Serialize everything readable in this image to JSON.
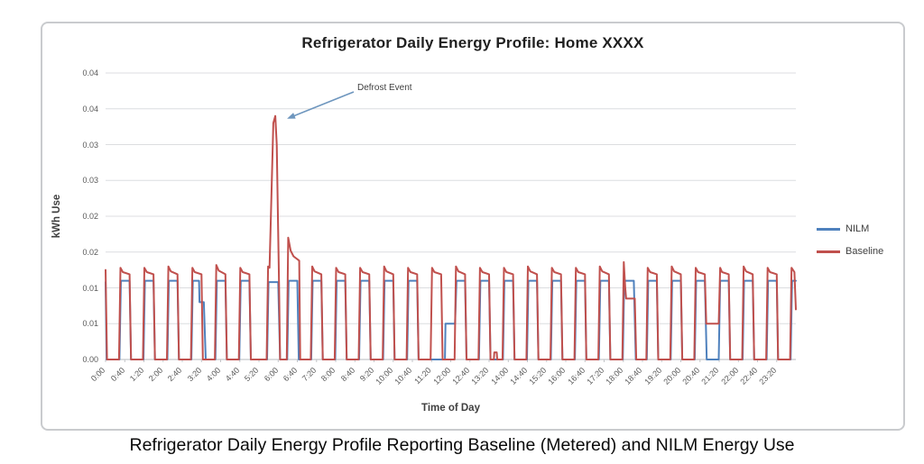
{
  "page": {
    "caption": "Refrigerator Daily Energy Profile Reporting Baseline (Metered) and NILM Energy Use"
  },
  "chart_data": {
    "type": "line",
    "title": "Refrigerator Daily Energy Profile: Home XXXX",
    "xlabel": "Time of Day",
    "ylabel": "kWh Use",
    "x_unit": "minutes_of_day",
    "xlim": [
      0,
      1440
    ],
    "ylim": [
      0,
      0.04
    ],
    "grid": "horizontal",
    "legend_position": "right",
    "annotation": {
      "text": "Defrost Event",
      "target_minutes": 354,
      "target_value": 0.034,
      "arrow_color": "#6e96be"
    },
    "y_ticks": [
      {
        "v": 0.04,
        "label": "0.04"
      },
      {
        "v": 0.035,
        "label": "0.04"
      },
      {
        "v": 0.03,
        "label": "0.03"
      },
      {
        "v": 0.025,
        "label": "0.03"
      },
      {
        "v": 0.02,
        "label": "0.02"
      },
      {
        "v": 0.015,
        "label": "0.02"
      },
      {
        "v": 0.01,
        "label": "0.01"
      },
      {
        "v": 0.005,
        "label": "0.01"
      },
      {
        "v": 0.0,
        "label": "0.00"
      }
    ],
    "x_ticks": [
      {
        "t": 0,
        "label": "0:00"
      },
      {
        "t": 40,
        "label": "0:40"
      },
      {
        "t": 80,
        "label": "1:20"
      },
      {
        "t": 120,
        "label": "2:00"
      },
      {
        "t": 160,
        "label": "2:40"
      },
      {
        "t": 200,
        "label": "3:20"
      },
      {
        "t": 240,
        "label": "4:00"
      },
      {
        "t": 280,
        "label": "4:40"
      },
      {
        "t": 320,
        "label": "5:20"
      },
      {
        "t": 360,
        "label": "6:00"
      },
      {
        "t": 400,
        "label": "6:40"
      },
      {
        "t": 440,
        "label": "7:20"
      },
      {
        "t": 480,
        "label": "8:00"
      },
      {
        "t": 520,
        "label": "8:40"
      },
      {
        "t": 560,
        "label": "9:20"
      },
      {
        "t": 600,
        "label": "10:00"
      },
      {
        "t": 640,
        "label": "10:40"
      },
      {
        "t": 680,
        "label": "11:20"
      },
      {
        "t": 720,
        "label": "12:00"
      },
      {
        "t": 760,
        "label": "12:40"
      },
      {
        "t": 800,
        "label": "13:20"
      },
      {
        "t": 840,
        "label": "14:00"
      },
      {
        "t": 880,
        "label": "14:40"
      },
      {
        "t": 920,
        "label": "15:20"
      },
      {
        "t": 960,
        "label": "16:00"
      },
      {
        "t": 1000,
        "label": "16:40"
      },
      {
        "t": 1040,
        "label": "17:20"
      },
      {
        "t": 1080,
        "label": "18:00"
      },
      {
        "t": 1120,
        "label": "18:40"
      },
      {
        "t": 1160,
        "label": "19:20"
      },
      {
        "t": 1200,
        "label": "20:00"
      },
      {
        "t": 1240,
        "label": "20:40"
      },
      {
        "t": 1280,
        "label": "21:20"
      },
      {
        "t": 1320,
        "label": "22:00"
      },
      {
        "t": 1360,
        "label": "22:40"
      },
      {
        "t": 1400,
        "label": "23:20"
      }
    ],
    "series": [
      {
        "name": "NILM",
        "color": "#4f81bd",
        "points": [
          [
            0,
            0.0108
          ],
          [
            2,
            0
          ],
          [
            29,
            0
          ],
          [
            32,
            0.011
          ],
          [
            50,
            0.011
          ],
          [
            53,
            0
          ],
          [
            79,
            0
          ],
          [
            82,
            0.011
          ],
          [
            100,
            0.011
          ],
          [
            103,
            0
          ],
          [
            129,
            0
          ],
          [
            132,
            0.011
          ],
          [
            150,
            0.011
          ],
          [
            153,
            0
          ],
          [
            179,
            0
          ],
          [
            182,
            0.011
          ],
          [
            195,
            0.011
          ],
          [
            196,
            0.008
          ],
          [
            205,
            0.008
          ],
          [
            209,
            0
          ],
          [
            229,
            0
          ],
          [
            232,
            0.011
          ],
          [
            250,
            0.011
          ],
          [
            253,
            0
          ],
          [
            279,
            0
          ],
          [
            282,
            0.011
          ],
          [
            300,
            0.011
          ],
          [
            303,
            0
          ],
          [
            337,
            0
          ],
          [
            340,
            0.0108
          ],
          [
            360,
            0.0108
          ],
          [
            364,
            0
          ],
          [
            379,
            0
          ],
          [
            382,
            0.011
          ],
          [
            400,
            0.011
          ],
          [
            403,
            0
          ],
          [
            429,
            0
          ],
          [
            432,
            0.011
          ],
          [
            450,
            0.011
          ],
          [
            453,
            0
          ],
          [
            479,
            0
          ],
          [
            482,
            0.011
          ],
          [
            500,
            0.011
          ],
          [
            503,
            0
          ],
          [
            529,
            0
          ],
          [
            532,
            0.011
          ],
          [
            550,
            0.011
          ],
          [
            553,
            0
          ],
          [
            579,
            0
          ],
          [
            582,
            0.011
          ],
          [
            600,
            0.011
          ],
          [
            603,
            0
          ],
          [
            629,
            0
          ],
          [
            632,
            0.011
          ],
          [
            650,
            0.011
          ],
          [
            653,
            0
          ],
          [
            708,
            0
          ],
          [
            709,
            0.005
          ],
          [
            729,
            0.005
          ],
          [
            732,
            0.011
          ],
          [
            750,
            0.011
          ],
          [
            753,
            0
          ],
          [
            779,
            0
          ],
          [
            782,
            0.011
          ],
          [
            800,
            0.011
          ],
          [
            803,
            0
          ],
          [
            829,
            0
          ],
          [
            832,
            0.011
          ],
          [
            850,
            0.011
          ],
          [
            853,
            0
          ],
          [
            879,
            0
          ],
          [
            882,
            0.011
          ],
          [
            900,
            0.011
          ],
          [
            903,
            0
          ],
          [
            929,
            0
          ],
          [
            932,
            0.011
          ],
          [
            950,
            0.011
          ],
          [
            953,
            0
          ],
          [
            979,
            0
          ],
          [
            982,
            0.011
          ],
          [
            1000,
            0.011
          ],
          [
            1003,
            0
          ],
          [
            1029,
            0
          ],
          [
            1032,
            0.011
          ],
          [
            1050,
            0.011
          ],
          [
            1053,
            0
          ],
          [
            1079,
            0
          ],
          [
            1082,
            0.011
          ],
          [
            1102,
            0.011
          ],
          [
            1106,
            0
          ],
          [
            1129,
            0
          ],
          [
            1132,
            0.011
          ],
          [
            1150,
            0.011
          ],
          [
            1153,
            0
          ],
          [
            1179,
            0
          ],
          [
            1182,
            0.011
          ],
          [
            1200,
            0.011
          ],
          [
            1203,
            0
          ],
          [
            1229,
            0
          ],
          [
            1232,
            0.011
          ],
          [
            1250,
            0.011
          ],
          [
            1254,
            0
          ],
          [
            1279,
            0
          ],
          [
            1282,
            0.011
          ],
          [
            1300,
            0.011
          ],
          [
            1303,
            0
          ],
          [
            1329,
            0
          ],
          [
            1332,
            0.011
          ],
          [
            1350,
            0.011
          ],
          [
            1353,
            0
          ],
          [
            1379,
            0
          ],
          [
            1382,
            0.011
          ],
          [
            1400,
            0.011
          ],
          [
            1403,
            0
          ],
          [
            1429,
            0
          ],
          [
            1432,
            0.011
          ],
          [
            1440,
            0.011
          ]
        ]
      },
      {
        "name": "Baseline",
        "color": "#c0504d",
        "points": [
          [
            0,
            0.0125
          ],
          [
            3,
            0
          ],
          [
            28,
            0
          ],
          [
            31,
            0.0128
          ],
          [
            36,
            0.0122
          ],
          [
            50,
            0.0119
          ],
          [
            53,
            0
          ],
          [
            78,
            0
          ],
          [
            81,
            0.0128
          ],
          [
            86,
            0.0122
          ],
          [
            100,
            0.0119
          ],
          [
            103,
            0
          ],
          [
            128,
            0
          ],
          [
            131,
            0.013
          ],
          [
            136,
            0.0123
          ],
          [
            150,
            0.0119
          ],
          [
            153,
            0
          ],
          [
            178,
            0
          ],
          [
            181,
            0.0128
          ],
          [
            186,
            0.0122
          ],
          [
            200,
            0.0119
          ],
          [
            203,
            0
          ],
          [
            228,
            0
          ],
          [
            231,
            0.0132
          ],
          [
            236,
            0.0124
          ],
          [
            250,
            0.0119
          ],
          [
            253,
            0
          ],
          [
            278,
            0
          ],
          [
            281,
            0.0128
          ],
          [
            286,
            0.0122
          ],
          [
            300,
            0.0119
          ],
          [
            303,
            0
          ],
          [
            336,
            0
          ],
          [
            339,
            0.013
          ],
          [
            342,
            0.0128
          ],
          [
            344,
            0.018
          ],
          [
            350,
            0.033
          ],
          [
            354,
            0.034
          ],
          [
            357,
            0.03
          ],
          [
            362,
            0.01
          ],
          [
            364,
            0
          ],
          [
            378,
            0
          ],
          [
            381,
            0.017
          ],
          [
            386,
            0.0152
          ],
          [
            392,
            0.0144
          ],
          [
            400,
            0.014
          ],
          [
            404,
            0.0138
          ],
          [
            406,
            0
          ],
          [
            428,
            0
          ],
          [
            431,
            0.013
          ],
          [
            436,
            0.0123
          ],
          [
            450,
            0.0119
          ],
          [
            453,
            0
          ],
          [
            478,
            0
          ],
          [
            481,
            0.0128
          ],
          [
            486,
            0.0122
          ],
          [
            500,
            0.0119
          ],
          [
            503,
            0
          ],
          [
            528,
            0
          ],
          [
            531,
            0.0128
          ],
          [
            536,
            0.0122
          ],
          [
            550,
            0.0119
          ],
          [
            553,
            0
          ],
          [
            578,
            0
          ],
          [
            581,
            0.013
          ],
          [
            586,
            0.0123
          ],
          [
            600,
            0.0119
          ],
          [
            603,
            0
          ],
          [
            628,
            0
          ],
          [
            631,
            0.0128
          ],
          [
            636,
            0.0122
          ],
          [
            650,
            0.0119
          ],
          [
            653,
            0
          ],
          [
            678,
            0
          ],
          [
            681,
            0.0128
          ],
          [
            686,
            0.0122
          ],
          [
            700,
            0.0119
          ],
          [
            703,
            0
          ],
          [
            728,
            0
          ],
          [
            731,
            0.013
          ],
          [
            736,
            0.0123
          ],
          [
            750,
            0.0119
          ],
          [
            753,
            0
          ],
          [
            778,
            0
          ],
          [
            781,
            0.0128
          ],
          [
            786,
            0.0122
          ],
          [
            800,
            0.0119
          ],
          [
            803,
            0
          ],
          [
            810,
            0
          ],
          [
            811,
            0.001
          ],
          [
            816,
            0.001
          ],
          [
            817,
            0
          ],
          [
            828,
            0
          ],
          [
            831,
            0.0128
          ],
          [
            836,
            0.0122
          ],
          [
            850,
            0.0119
          ],
          [
            853,
            0
          ],
          [
            878,
            0
          ],
          [
            881,
            0.013
          ],
          [
            886,
            0.0123
          ],
          [
            900,
            0.0119
          ],
          [
            903,
            0
          ],
          [
            928,
            0
          ],
          [
            931,
            0.0128
          ],
          [
            936,
            0.0122
          ],
          [
            950,
            0.0119
          ],
          [
            953,
            0
          ],
          [
            978,
            0
          ],
          [
            981,
            0.0128
          ],
          [
            986,
            0.0122
          ],
          [
            1000,
            0.0119
          ],
          [
            1003,
            0
          ],
          [
            1028,
            0
          ],
          [
            1031,
            0.013
          ],
          [
            1036,
            0.0123
          ],
          [
            1050,
            0.0119
          ],
          [
            1053,
            0
          ],
          [
            1078,
            0
          ],
          [
            1081,
            0.0136
          ],
          [
            1084,
            0.01
          ],
          [
            1086,
            0.0085
          ],
          [
            1104,
            0.0085
          ],
          [
            1107,
            0
          ],
          [
            1128,
            0
          ],
          [
            1131,
            0.0128
          ],
          [
            1136,
            0.0122
          ],
          [
            1150,
            0.0119
          ],
          [
            1153,
            0
          ],
          [
            1178,
            0
          ],
          [
            1181,
            0.013
          ],
          [
            1186,
            0.0123
          ],
          [
            1200,
            0.0119
          ],
          [
            1203,
            0
          ],
          [
            1228,
            0
          ],
          [
            1231,
            0.0128
          ],
          [
            1236,
            0.0122
          ],
          [
            1250,
            0.0119
          ],
          [
            1253,
            0.005
          ],
          [
            1279,
            0.005
          ],
          [
            1282,
            0.0128
          ],
          [
            1286,
            0.0122
          ],
          [
            1300,
            0.0119
          ],
          [
            1303,
            0
          ],
          [
            1328,
            0
          ],
          [
            1331,
            0.013
          ],
          [
            1336,
            0.0123
          ],
          [
            1350,
            0.0119
          ],
          [
            1353,
            0
          ],
          [
            1378,
            0
          ],
          [
            1381,
            0.0128
          ],
          [
            1386,
            0.0122
          ],
          [
            1400,
            0.0119
          ],
          [
            1403,
            0
          ],
          [
            1428,
            0
          ],
          [
            1431,
            0.0128
          ],
          [
            1437,
            0.0122
          ],
          [
            1440,
            0.007
          ]
        ]
      }
    ]
  }
}
